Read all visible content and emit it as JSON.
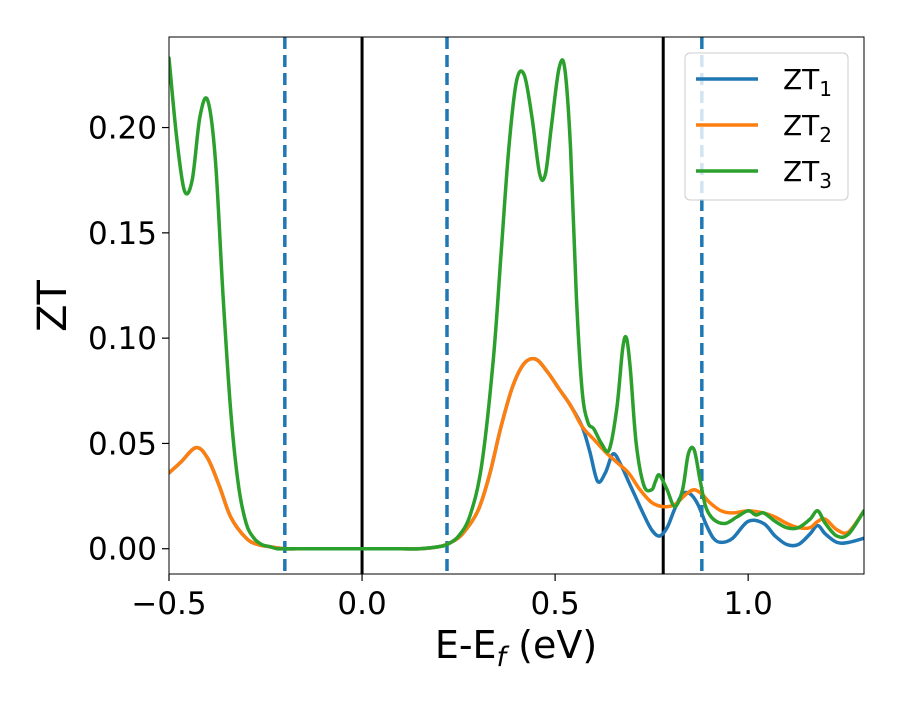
{
  "chart_data": {
    "type": "line",
    "xlabel": "E-E",
    "xlabel_sub": "f",
    "xlabel_unit": "(eV)",
    "ylabel": "ZT",
    "xlim": [
      -0.5,
      1.3
    ],
    "ylim": [
      -0.012,
      0.243
    ],
    "xticks": [
      -0.5,
      0.0,
      0.5,
      1.0
    ],
    "xtick_labels": [
      "−0.5",
      "0.0",
      "0.5",
      "1.0"
    ],
    "yticks": [
      0.0,
      0.05,
      0.1,
      0.15,
      0.2
    ],
    "ytick_labels": [
      "0.00",
      "0.05",
      "0.10",
      "0.15",
      "0.20"
    ],
    "grid": false,
    "legend_position": "top-right",
    "vlines": [
      {
        "x": 0.0,
        "style": "solid",
        "color": "#000000"
      },
      {
        "x": 0.78,
        "style": "solid",
        "color": "#000000"
      },
      {
        "x": -0.2,
        "style": "dashed",
        "color": "#1f77b4"
      },
      {
        "x": 0.22,
        "style": "dashed",
        "color": "#1f77b4"
      },
      {
        "x": 0.88,
        "style": "dashed",
        "color": "#1f77b4"
      }
    ],
    "series": [
      {
        "name": "ZT",
        "sub": "1",
        "color": "#1f77b4",
        "x": [
          -0.5,
          -0.47,
          -0.43,
          -0.4,
          -0.37,
          -0.34,
          -0.3,
          -0.27,
          -0.24,
          -0.2,
          -0.15,
          -0.1,
          0.0,
          0.1,
          0.15,
          0.2,
          0.23,
          0.26,
          0.3,
          0.33,
          0.36,
          0.39,
          0.42,
          0.45,
          0.48,
          0.51,
          0.54,
          0.57,
          0.59,
          0.61,
          0.63,
          0.65,
          0.67,
          0.69,
          0.71,
          0.73,
          0.75,
          0.77,
          0.79,
          0.81,
          0.83,
          0.85,
          0.87,
          0.89,
          0.91,
          0.93,
          0.96,
          1.0,
          1.04,
          1.07,
          1.1,
          1.13,
          1.16,
          1.18,
          1.2,
          1.23,
          1.26,
          1.3
        ],
        "y": [
          0.036,
          0.041,
          0.048,
          0.043,
          0.03,
          0.015,
          0.005,
          0.002,
          0.001,
          0.0,
          0.0,
          0.0,
          0.0,
          0.0,
          0.0,
          0.001,
          0.003,
          0.007,
          0.018,
          0.035,
          0.058,
          0.077,
          0.088,
          0.09,
          0.084,
          0.076,
          0.068,
          0.058,
          0.046,
          0.032,
          0.036,
          0.045,
          0.04,
          0.032,
          0.024,
          0.016,
          0.009,
          0.006,
          0.01,
          0.019,
          0.026,
          0.026,
          0.021,
          0.012,
          0.005,
          0.003,
          0.005,
          0.013,
          0.012,
          0.006,
          0.002,
          0.002,
          0.007,
          0.011,
          0.007,
          0.003,
          0.003,
          0.005
        ]
      },
      {
        "name": "ZT",
        "sub": "2",
        "color": "#ff7f0e",
        "x": [
          -0.5,
          -0.47,
          -0.43,
          -0.4,
          -0.37,
          -0.34,
          -0.3,
          -0.27,
          -0.24,
          -0.2,
          -0.15,
          -0.1,
          0.0,
          0.1,
          0.15,
          0.2,
          0.23,
          0.26,
          0.3,
          0.33,
          0.36,
          0.39,
          0.42,
          0.45,
          0.48,
          0.51,
          0.54,
          0.57,
          0.6,
          0.63,
          0.66,
          0.69,
          0.72,
          0.75,
          0.78,
          0.81,
          0.84,
          0.86,
          0.88,
          0.9,
          0.93,
          0.96,
          1.0,
          1.04,
          1.07,
          1.1,
          1.13,
          1.16,
          1.18,
          1.2,
          1.23,
          1.26,
          1.3
        ],
        "y": [
          0.036,
          0.041,
          0.048,
          0.043,
          0.03,
          0.015,
          0.005,
          0.002,
          0.001,
          0.0,
          0.0,
          0.0,
          0.0,
          0.0,
          0.0,
          0.001,
          0.003,
          0.007,
          0.018,
          0.035,
          0.058,
          0.077,
          0.088,
          0.09,
          0.084,
          0.076,
          0.068,
          0.058,
          0.052,
          0.046,
          0.041,
          0.036,
          0.028,
          0.022,
          0.02,
          0.021,
          0.026,
          0.028,
          0.026,
          0.022,
          0.018,
          0.017,
          0.018,
          0.017,
          0.015,
          0.012,
          0.01,
          0.01,
          0.013,
          0.014,
          0.009,
          0.008,
          0.018
        ]
      },
      {
        "name": "ZT",
        "sub": "3",
        "color": "#2ca02c",
        "x": [
          -0.5,
          -0.48,
          -0.46,
          -0.44,
          -0.42,
          -0.4,
          -0.38,
          -0.36,
          -0.34,
          -0.32,
          -0.3,
          -0.28,
          -0.26,
          -0.24,
          -0.22,
          -0.2,
          -0.15,
          -0.1,
          0.0,
          0.1,
          0.15,
          0.2,
          0.22,
          0.25,
          0.28,
          0.31,
          0.34,
          0.36,
          0.38,
          0.4,
          0.42,
          0.44,
          0.46,
          0.475,
          0.49,
          0.51,
          0.525,
          0.54,
          0.555,
          0.57,
          0.585,
          0.6,
          0.62,
          0.64,
          0.66,
          0.675,
          0.685,
          0.695,
          0.71,
          0.73,
          0.75,
          0.76,
          0.77,
          0.79,
          0.81,
          0.83,
          0.845,
          0.86,
          0.875,
          0.89,
          0.91,
          0.94,
          0.97,
          1.0,
          1.02,
          1.04,
          1.07,
          1.1,
          1.13,
          1.16,
          1.18,
          1.2,
          1.23,
          1.26,
          1.3
        ],
        "y": [
          0.233,
          0.195,
          0.17,
          0.175,
          0.205,
          0.213,
          0.185,
          0.12,
          0.065,
          0.03,
          0.012,
          0.005,
          0.002,
          0.001,
          0.0,
          0.0,
          0.0,
          0.0,
          0.0,
          0.0,
          0.0,
          0.001,
          0.002,
          0.006,
          0.016,
          0.04,
          0.09,
          0.14,
          0.19,
          0.222,
          0.225,
          0.205,
          0.178,
          0.178,
          0.2,
          0.228,
          0.228,
          0.19,
          0.12,
          0.075,
          0.06,
          0.057,
          0.05,
          0.047,
          0.067,
          0.095,
          0.1,
          0.085,
          0.05,
          0.03,
          0.028,
          0.032,
          0.035,
          0.028,
          0.02,
          0.028,
          0.045,
          0.047,
          0.033,
          0.02,
          0.014,
          0.012,
          0.015,
          0.018,
          0.016,
          0.017,
          0.013,
          0.01,
          0.01,
          0.014,
          0.018,
          0.012,
          0.006,
          0.007,
          0.018
        ]
      }
    ]
  }
}
